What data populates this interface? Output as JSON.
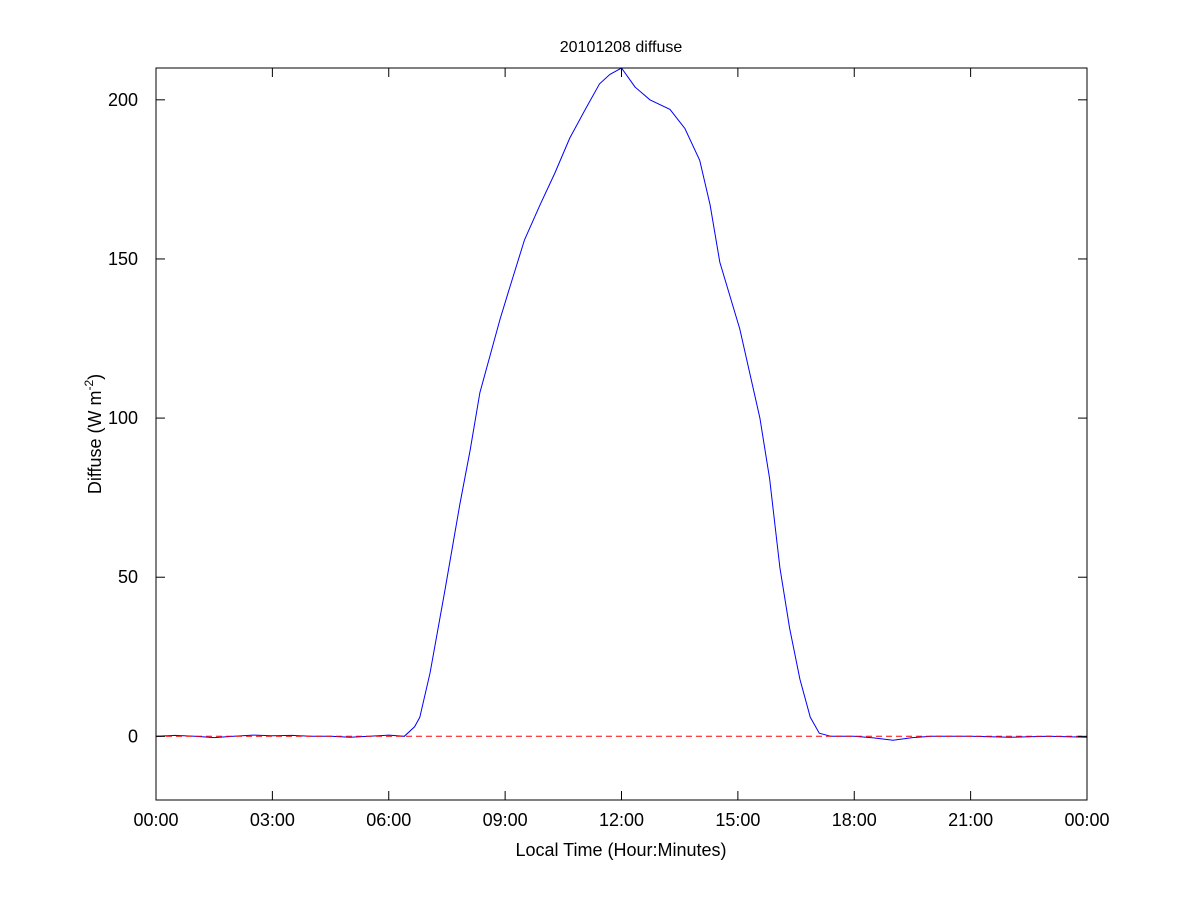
{
  "chart_data": {
    "type": "line",
    "title": "20101208 diffuse",
    "xlabel": "Local Time (Hour:Minutes)",
    "ylabel_main": "Diffuse (W m",
    "ylabel_sup": "-2",
    "ylabel_close": ")",
    "xlim": [
      "00:00",
      "24:00"
    ],
    "ylim": [
      -20,
      210
    ],
    "xticks": [
      "00:00",
      "03:00",
      "06:00",
      "09:00",
      "12:00",
      "15:00",
      "18:00",
      "21:00",
      "00:00"
    ],
    "yticks": [
      0,
      50,
      100,
      150,
      200
    ],
    "grid": false,
    "series": [
      {
        "color": "#0000ff",
        "style": "solid",
        "points": [
          [
            "00:00",
            0
          ],
          [
            "00:30",
            0.3
          ],
          [
            "01:00",
            0
          ],
          [
            "01:30",
            -0.4
          ],
          [
            "02:00",
            0
          ],
          [
            "02:30",
            0.4
          ],
          [
            "03:00",
            0.2
          ],
          [
            "03:30",
            0.3
          ],
          [
            "04:00",
            0
          ],
          [
            "04:30",
            0
          ],
          [
            "05:00",
            -0.3
          ],
          [
            "05:30",
            0
          ],
          [
            "06:00",
            0.4
          ],
          [
            "06:24",
            0
          ],
          [
            "06:40",
            3
          ],
          [
            "06:48",
            6
          ],
          [
            "07:04",
            20
          ],
          [
            "07:27",
            46
          ],
          [
            "07:50",
            73
          ],
          [
            "08:06",
            90
          ],
          [
            "08:21",
            108
          ],
          [
            "08:52",
            131
          ],
          [
            "09:07",
            141
          ],
          [
            "09:30",
            156
          ],
          [
            "09:54",
            167
          ],
          [
            "10:17",
            177
          ],
          [
            "10:40",
            188
          ],
          [
            "11:04",
            197
          ],
          [
            "11:26",
            205
          ],
          [
            "11:42",
            208
          ],
          [
            "12:00",
            210
          ],
          [
            "12:21",
            204
          ],
          [
            "12:44",
            200
          ],
          [
            "13:15",
            197
          ],
          [
            "13:38",
            191
          ],
          [
            "14:01",
            181
          ],
          [
            "14:17",
            167
          ],
          [
            "14:32",
            149
          ],
          [
            "15:03",
            128
          ],
          [
            "15:34",
            100
          ],
          [
            "15:49",
            81
          ],
          [
            "16:05",
            53
          ],
          [
            "16:20",
            34
          ],
          [
            "16:36",
            18
          ],
          [
            "16:52",
            6
          ],
          [
            "17:06",
            1
          ],
          [
            "17:24",
            0
          ],
          [
            "18:00",
            0
          ],
          [
            "18:30",
            -0.5
          ],
          [
            "19:00",
            -1.2
          ],
          [
            "19:30",
            -0.4
          ],
          [
            "20:00",
            0
          ],
          [
            "21:00",
            0
          ],
          [
            "22:00",
            -0.3
          ],
          [
            "23:00",
            0
          ],
          [
            "24:00",
            -0.3
          ]
        ]
      },
      {
        "color": "#ff0000",
        "style": "dashed",
        "points": [
          [
            "00:00",
            0
          ],
          [
            "24:00",
            0
          ]
        ]
      }
    ]
  }
}
